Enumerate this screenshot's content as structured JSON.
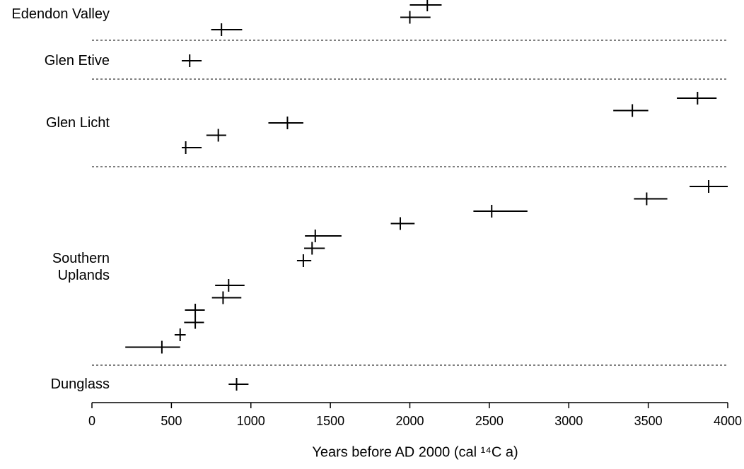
{
  "chart_data": {
    "type": "interval",
    "x_label": "Years before AD 2000 (cal ¹⁴C a)",
    "xlim": [
      0,
      4000
    ],
    "xticks": [
      0,
      500,
      1000,
      1500,
      2000,
      2500,
      3000,
      3500,
      4000
    ],
    "color": "#000000",
    "groups": [
      {
        "name": "Edendon Valley",
        "values": [
          2110,
          2000,
          815
        ],
        "low": [
          2000,
          1940,
          750
        ],
        "high": [
          2200,
          2130,
          945
        ]
      },
      {
        "name": "Glen Etive",
        "values": [
          615
        ],
        "low": [
          565
        ],
        "high": [
          690
        ]
      },
      {
        "name": "Glen Licht",
        "values": [
          3810,
          3400,
          1230,
          795,
          590
        ],
        "low": [
          3680,
          3280,
          1110,
          720,
          565
        ],
        "high": [
          3930,
          3500,
          1330,
          845,
          690
        ]
      },
      {
        "name": "Southern Uplands",
        "values": [
          3880,
          3490,
          2515,
          1940,
          1405,
          1385,
          1330,
          null,
          860,
          825,
          650,
          650,
          555,
          440
        ],
        "low": [
          3760,
          3410,
          2400,
          1880,
          1340,
          1335,
          1290,
          null,
          775,
          755,
          585,
          580,
          520,
          210
        ],
        "high": [
          4000,
          3620,
          2740,
          2030,
          1570,
          1465,
          1380,
          null,
          960,
          940,
          710,
          705,
          590,
          555
        ]
      },
      {
        "name": "Dunglass",
        "values": [
          910
        ],
        "low": [
          860
        ],
        "high": [
          985
        ]
      }
    ]
  }
}
